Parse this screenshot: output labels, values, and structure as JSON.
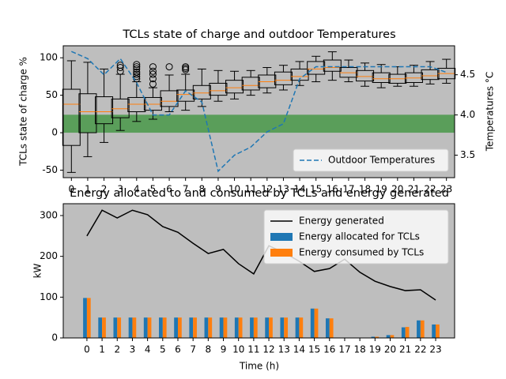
{
  "chart_data": [
    {
      "type": "box",
      "title": "TCLs state of charge and outdoor Temperatures",
      "ylabel": "TCLs state of charge %",
      "y2label": "Temperatures °C",
      "categories": [
        "0",
        "1",
        "2",
        "3",
        "4",
        "5",
        "6",
        "7",
        "8",
        "9",
        "10",
        "11",
        "12",
        "13",
        "14",
        "15",
        "16",
        "17",
        "18",
        "19",
        "20",
        "21",
        "22",
        "23"
      ],
      "boxes": [
        {
          "low": -53,
          "q1": -17,
          "median": 38,
          "q3": 58,
          "high": 96,
          "outliers": []
        },
        {
          "low": -32,
          "q1": 0,
          "median": 28,
          "q3": 52,
          "high": 94,
          "outliers": []
        },
        {
          "low": -13,
          "q1": 12,
          "median": 28,
          "q3": 48,
          "high": 85,
          "outliers": []
        },
        {
          "low": 3,
          "q1": 20,
          "median": 32,
          "q3": 45,
          "high": 78,
          "outliers": [
            82,
            87,
            90
          ]
        },
        {
          "low": 15,
          "q1": 28,
          "median": 38,
          "q3": 47,
          "high": 68,
          "outliers": [
            72,
            75,
            78,
            81,
            85,
            88,
            91
          ]
        },
        {
          "low": 18,
          "q1": 30,
          "median": 38,
          "q3": 47,
          "high": 60,
          "outliers": [
            65,
            72,
            78,
            82,
            88
          ]
        },
        {
          "low": 28,
          "q1": 35,
          "median": 42,
          "q3": 56,
          "high": 77,
          "outliers": [
            88
          ]
        },
        {
          "low": 30,
          "q1": 42,
          "median": 51,
          "q3": 57,
          "high": 78,
          "outliers": [
            84,
            86,
            88
          ]
        },
        {
          "low": 35,
          "q1": 45,
          "median": 53,
          "q3": 63,
          "high": 85,
          "outliers": []
        },
        {
          "low": 42,
          "q1": 50,
          "median": 56,
          "q3": 66,
          "high": 83,
          "outliers": []
        },
        {
          "low": 45,
          "q1": 53,
          "median": 60,
          "q3": 70,
          "high": 82,
          "outliers": []
        },
        {
          "low": 50,
          "q1": 57,
          "median": 63,
          "q3": 74,
          "high": 83,
          "outliers": []
        },
        {
          "low": 53,
          "q1": 60,
          "median": 68,
          "q3": 77,
          "high": 87,
          "outliers": []
        },
        {
          "low": 57,
          "q1": 64,
          "median": 70,
          "q3": 81,
          "high": 90,
          "outliers": []
        },
        {
          "low": 63,
          "q1": 70,
          "median": 75,
          "q3": 85,
          "high": 95,
          "outliers": []
        },
        {
          "low": 68,
          "q1": 78,
          "median": 85,
          "q3": 95,
          "high": 102,
          "outliers": []
        },
        {
          "low": 70,
          "q1": 82,
          "median": 87,
          "q3": 97,
          "high": 108,
          "outliers": []
        },
        {
          "low": 68,
          "q1": 74,
          "median": 80,
          "q3": 87,
          "high": 97,
          "outliers": []
        },
        {
          "low": 62,
          "q1": 69,
          "median": 75,
          "q3": 83,
          "high": 93,
          "outliers": []
        },
        {
          "low": 60,
          "q1": 67,
          "median": 72,
          "q3": 80,
          "high": 91,
          "outliers": []
        },
        {
          "low": 62,
          "q1": 66,
          "median": 72,
          "q3": 78,
          "high": 88,
          "outliers": []
        },
        {
          "low": 62,
          "q1": 67,
          "median": 73,
          "q3": 80,
          "high": 90,
          "outliers": []
        },
        {
          "low": 65,
          "q1": 71,
          "median": 76,
          "q3": 84,
          "high": 95,
          "outliers": []
        },
        {
          "low": 66,
          "q1": 72,
          "median": 79,
          "q3": 86,
          "high": 98,
          "outliers": []
        }
      ],
      "median_color": "#ff7f0e",
      "band": [
        0,
        24
      ],
      "band_color": "#5a9e5a",
      "series": [
        {
          "name": "Outdoor Temperatures",
          "color": "#1f77b4",
          "type": "line",
          "dashed": true,
          "axis": "y2",
          "values": [
            4.79,
            4.7,
            4.5,
            4.7,
            4.4,
            4.0,
            4.0,
            4.3,
            4.16,
            3.3,
            3.5,
            3.6,
            3.79,
            3.89,
            4.45,
            4.6,
            4.6,
            4.6,
            4.6,
            4.6,
            4.6,
            4.6,
            4.6,
            4.53
          ]
        }
      ],
      "ylim": [
        -60,
        116
      ],
      "yticks": [
        -50,
        0,
        50,
        100
      ],
      "y2lim": [
        3.22,
        4.86
      ],
      "y2ticks": [
        3.5,
        {
          "value": 4,
          "label": "4.0"
        },
        4.5
      ],
      "legend": "lower right",
      "background": "#bebebe"
    },
    {
      "type": "bar",
      "title": "Energy allocated to and consumed by TCLs and energy generated",
      "ylabel": "kW",
      "xlabel": "Time (h)",
      "x": [
        0,
        1,
        2,
        3,
        4,
        5,
        6,
        7,
        8,
        9,
        10,
        11,
        12,
        13,
        14,
        15,
        16,
        17,
        18,
        19,
        20,
        21,
        22,
        23
      ],
      "series": [
        {
          "name": "Energy generated",
          "color": "#000000",
          "type": "line",
          "values": [
            250,
            313,
            294,
            313,
            302,
            273,
            259,
            232,
            207,
            217,
            182,
            157,
            226,
            209,
            188,
            163,
            170,
            193,
            161,
            139,
            126,
            116,
            118,
            93
          ]
        },
        {
          "name": "Energy allocated for TCLs",
          "color": "#1f77b4",
          "type": "bar",
          "values": [
            98,
            50,
            50,
            50,
            50,
            50,
            50,
            50,
            50,
            50,
            50,
            50,
            50,
            50,
            50,
            72,
            48,
            0,
            0,
            3,
            7,
            26,
            43,
            33
          ]
        },
        {
          "name": "Energy consumed by TCLs",
          "color": "#ff7f0e",
          "type": "bar",
          "values": [
            98,
            50,
            50,
            50,
            50,
            50,
            50,
            50,
            50,
            50,
            50,
            50,
            50,
            50,
            50,
            72,
            48,
            0,
            0,
            3,
            7,
            27,
            43,
            33
          ]
        }
      ],
      "xlim": [
        -1.56,
        24.25
      ],
      "xticks": [
        0,
        1,
        2,
        3,
        4,
        5,
        6,
        7,
        8,
        9,
        10,
        11,
        12,
        13,
        14,
        15,
        16,
        17,
        18,
        19,
        20,
        21,
        22,
        23
      ],
      "ylim": [
        0,
        329
      ],
      "yticks": [
        0,
        100,
        200,
        300
      ],
      "legend": "upper right",
      "background": "#bebebe"
    }
  ]
}
